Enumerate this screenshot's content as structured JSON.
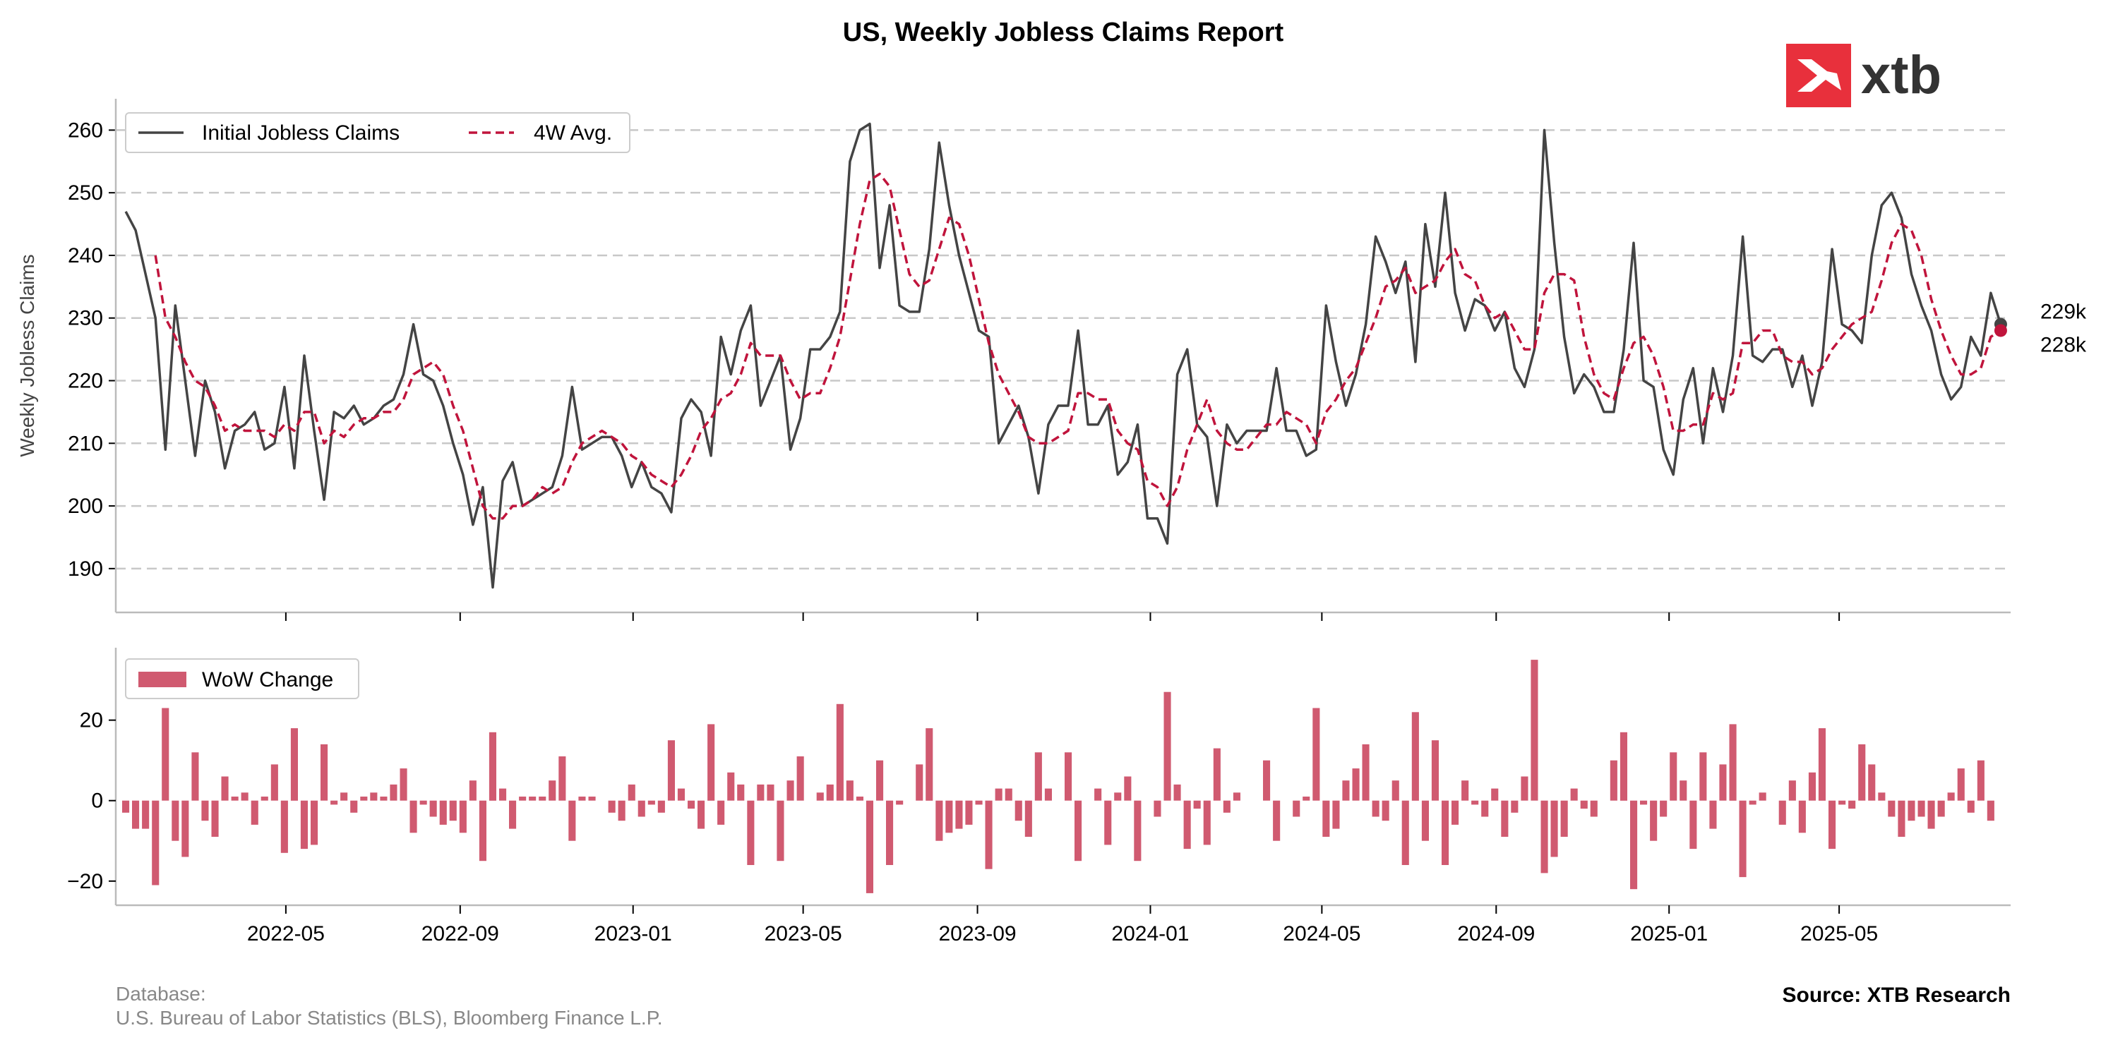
{
  "title": "US, Weekly Jobless Claims Report",
  "brand": {
    "name": "xtb",
    "accent": "#e8303c"
  },
  "footer": {
    "database_label": "Database:",
    "database_sources": "U.S. Bureau of Labor Statistics (BLS), Bloomberg Finance L.P.",
    "source": "Source: XTB Research"
  },
  "colors": {
    "claims_line": "#444444",
    "avg_line": "#c0143c",
    "bars": "#d05a70",
    "grid": "#c8c8c8"
  },
  "chart_data": [
    {
      "type": "line",
      "ylabel": "Weekly Jobless Claims",
      "ylim": [
        183,
        265
      ],
      "yticks": [
        190,
        200,
        210,
        220,
        230,
        240,
        250,
        260
      ],
      "x_start": "2022-01-08",
      "x_step_days": 7,
      "x_ticks": [
        "2022-05",
        "2022-09",
        "2023-01",
        "2023-05",
        "2023-09",
        "2024-01",
        "2024-05",
        "2024-09",
        "2025-01",
        "2025-05"
      ],
      "grid": "horizontal dashed",
      "legend_position": "top-left",
      "end_labels": [
        "229k",
        "228k"
      ],
      "series": [
        {
          "name": "Initial Jobless Claims",
          "style": "solid",
          "values": [
            247,
            244,
            237,
            230,
            209,
            232,
            220,
            208,
            220,
            215,
            206,
            212,
            213,
            215,
            209,
            210,
            219,
            206,
            224,
            212,
            201,
            215,
            214,
            216,
            213,
            214,
            216,
            217,
            221,
            229,
            221,
            220,
            216,
            210,
            205,
            197,
            203,
            187,
            204,
            207,
            200,
            201,
            202,
            203,
            208,
            219,
            209,
            210,
            211,
            211,
            208,
            203,
            207,
            203,
            202,
            199,
            214,
            217,
            215,
            208,
            227,
            221,
            228,
            232,
            216,
            220,
            224,
            209,
            214,
            225,
            225,
            227,
            231,
            255,
            260,
            261,
            238,
            248,
            232,
            231,
            231,
            241,
            258,
            248,
            240,
            234,
            228,
            227,
            210,
            213,
            216,
            211,
            202,
            213,
            216,
            216,
            228,
            213,
            213,
            216,
            205,
            207,
            213,
            198,
            198,
            194,
            221,
            225,
            213,
            211,
            200,
            213,
            210,
            212,
            212,
            212,
            222,
            212,
            212,
            208,
            209,
            232,
            223,
            216,
            221,
            229,
            243,
            239,
            234,
            239,
            223,
            245,
            235,
            250,
            234,
            228,
            233,
            232,
            228,
            231,
            222,
            219,
            225,
            260,
            242,
            227,
            218,
            221,
            219,
            215,
            215,
            225,
            242,
            220,
            219,
            209,
            205,
            217,
            222,
            210,
            222,
            215,
            224,
            243,
            224,
            223,
            225,
            225,
            219,
            224,
            216,
            223,
            241,
            229,
            228,
            226,
            240,
            248,
            250,
            246,
            237,
            232,
            228,
            221,
            217,
            219,
            227,
            224,
            234,
            229
          ]
        },
        {
          "name": "4W Avg.",
          "style": "dashed",
          "values": [
            null,
            null,
            null,
            240,
            230,
            227,
            223,
            220,
            219,
            216,
            212,
            213,
            212,
            212,
            212,
            211,
            213,
            212,
            215,
            215,
            210,
            212,
            211,
            213,
            214,
            214,
            215,
            215,
            217,
            221,
            222,
            223,
            221,
            216,
            212,
            206,
            200,
            198,
            198,
            200,
            200,
            201,
            203,
            202,
            203,
            207,
            210,
            211,
            212,
            211,
            210,
            208,
            207,
            205,
            204,
            203,
            205,
            208,
            212,
            214,
            217,
            218,
            221,
            226,
            224,
            224,
            224,
            220,
            217,
            218,
            218,
            222,
            227,
            236,
            245,
            252,
            253,
            251,
            244,
            237,
            235,
            236,
            241,
            246,
            245,
            240,
            233,
            226,
            221,
            218,
            215,
            211,
            210,
            210,
            211,
            212,
            218,
            218,
            217,
            217,
            212,
            210,
            209,
            204,
            203,
            200,
            203,
            209,
            213,
            217,
            212,
            210,
            209,
            209,
            211,
            213,
            213,
            215,
            214,
            213,
            210,
            215,
            217,
            220,
            222,
            226,
            230,
            235,
            236,
            238,
            234,
            235,
            236,
            239,
            241,
            237,
            236,
            232,
            230,
            231,
            228,
            225,
            225,
            234,
            237,
            237,
            236,
            227,
            221,
            218,
            217,
            222,
            226,
            227,
            224,
            219,
            212,
            212,
            213,
            213,
            218,
            217,
            218,
            226,
            226,
            228,
            228,
            224,
            223,
            223,
            221,
            222,
            225,
            227,
            229,
            230,
            231,
            236,
            242,
            245,
            244,
            240,
            233,
            228,
            224,
            221,
            221,
            222,
            227,
            228
          ]
        }
      ]
    },
    {
      "type": "bar",
      "ylim": [
        -26,
        38
      ],
      "yticks": [
        -20,
        0,
        20
      ],
      "legend_position": "top-left",
      "series": [
        {
          "name": "WoW Change",
          "values": [
            -3,
            -7,
            -7,
            -21,
            23,
            -10,
            -14,
            12,
            -5,
            -9,
            6,
            1,
            2,
            -6,
            1,
            9,
            -13,
            18,
            -12,
            -11,
            14,
            -1,
            2,
            -3,
            1,
            2,
            1,
            4,
            8,
            -8,
            -1,
            -4,
            -6,
            -5,
            -8,
            5,
            -15,
            17,
            3,
            -7,
            1,
            1,
            1,
            5,
            11,
            -10,
            1,
            1,
            0,
            -3,
            -5,
            4,
            -4,
            -1,
            -3,
            15,
            3,
            -2,
            -7,
            19,
            -6,
            7,
            4,
            -16,
            4,
            4,
            -15,
            5,
            11,
            0,
            2,
            4,
            24,
            5,
            1,
            -23,
            10,
            -16,
            -1,
            0,
            9,
            18,
            -10,
            -8,
            -7,
            -6,
            -1,
            -17,
            3,
            3,
            -5,
            -9,
            12,
            3,
            0,
            12,
            -15,
            0,
            3,
            -11,
            2,
            6,
            -15,
            0,
            -4,
            27,
            4,
            -12,
            -2,
            -11,
            13,
            -3,
            2,
            0,
            0,
            10,
            -10,
            0,
            -4,
            1,
            23,
            -9,
            -7,
            5,
            8,
            14,
            -4,
            -5,
            5,
            -16,
            22,
            -10,
            15,
            -16,
            -6,
            5,
            -1,
            -4,
            3,
            -9,
            -3,
            6,
            35,
            -18,
            -14,
            -9,
            3,
            -2,
            -4,
            0,
            10,
            17,
            -22,
            -1,
            -10,
            -4,
            12,
            5,
            -12,
            12,
            -7,
            9,
            19,
            -19,
            -1,
            2,
            0,
            -6,
            5,
            -8,
            7,
            18,
            -12,
            -1,
            -2,
            14,
            9,
            2,
            -4,
            -9,
            -5,
            -4,
            -7,
            -4,
            2,
            8,
            -3,
            10,
            -5
          ]
        }
      ]
    }
  ]
}
